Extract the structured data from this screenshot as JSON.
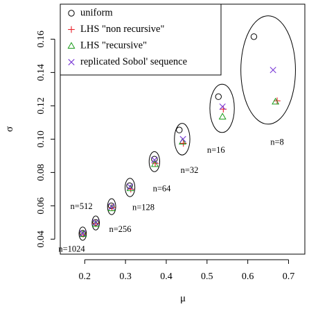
{
  "chart_data": {
    "type": "scatter",
    "xlabel": "μ",
    "ylabel": "σ",
    "xlim": [
      0.14,
      0.74
    ],
    "ylim": [
      0.031,
      0.181
    ],
    "x_ticks": [
      0.2,
      0.3,
      0.4,
      0.5,
      0.6,
      0.7
    ],
    "x_tick_labels": [
      "0.2",
      "0.3",
      "0.4",
      "0.5",
      "0.6",
      "0.7"
    ],
    "y_ticks": [
      0.04,
      0.06,
      0.08,
      0.1,
      0.12,
      0.14,
      0.16
    ],
    "y_tick_labels": [
      "0.04",
      "0.06",
      "0.08",
      "0.10",
      "0.12",
      "0.14",
      "0.16"
    ],
    "grid": false,
    "legend_position": "top-left",
    "series": [
      {
        "name": "uniform",
        "marker": "circle",
        "color": "#000000",
        "x": [
          0.615,
          0.528,
          0.432,
          0.371,
          0.31,
          0.265,
          0.227,
          0.195
        ],
        "y": [
          0.1615,
          0.1255,
          0.1055,
          0.088,
          0.072,
          0.06,
          0.05,
          0.0435
        ]
      },
      {
        "name": "LHS \"non recursive\"",
        "marker": "plus",
        "color": "#e8202a",
        "x": [
          0.672,
          0.54,
          0.442,
          0.373,
          0.313,
          0.267,
          0.227,
          0.196
        ],
        "y": [
          0.123,
          0.118,
          0.0975,
          0.0855,
          0.07,
          0.059,
          0.0495,
          0.043
        ]
      },
      {
        "name": "LHS \"recursive\"",
        "marker": "triangle",
        "color": "#1a9a1a",
        "x": [
          0.668,
          0.538,
          0.44,
          0.372,
          0.312,
          0.266,
          0.227,
          0.196
        ],
        "y": [
          0.1225,
          0.1135,
          0.0985,
          0.085,
          0.0705,
          0.0585,
          0.049,
          0.043
        ]
      },
      {
        "name": "replicated Sobol' sequence",
        "marker": "x",
        "color": "#7a3ad6",
        "x": [
          0.662,
          0.538,
          0.441,
          0.371,
          0.311,
          0.266,
          0.227,
          0.195
        ],
        "y": [
          0.1415,
          0.1195,
          0.1,
          0.0875,
          0.0715,
          0.0595,
          0.05,
          0.0435
        ]
      }
    ],
    "groups": [
      {
        "label": "n=8",
        "cx": 0.65,
        "cy": 0.1415,
        "rx": 0.067,
        "ry": 0.0325,
        "label_x": 0.672,
        "label_y": 0.0978
      },
      {
        "label": "n=16",
        "cx": 0.537,
        "cy": 0.1185,
        "rx": 0.03,
        "ry": 0.0145,
        "label_x": 0.522,
        "label_y": 0.093
      },
      {
        "label": "n=32",
        "cx": 0.439,
        "cy": 0.1,
        "rx": 0.019,
        "ry": 0.0095,
        "label_x": 0.457,
        "label_y": 0.081
      },
      {
        "label": "n=64",
        "cx": 0.371,
        "cy": 0.0865,
        "rx": 0.013,
        "ry": 0.006,
        "label_x": 0.389,
        "label_y": 0.07
      },
      {
        "label": "n=128",
        "cx": 0.311,
        "cy": 0.071,
        "rx": 0.012,
        "ry": 0.0055,
        "label_x": 0.344,
        "label_y": 0.0587
      },
      {
        "label": "n=256",
        "cx": 0.266,
        "cy": 0.0595,
        "rx": 0.01,
        "ry": 0.0048,
        "label_x": 0.287,
        "label_y": 0.0455
      },
      {
        "label": "n=512",
        "cx": 0.227,
        "cy": 0.0497,
        "rx": 0.009,
        "ry": 0.0042,
        "label_x": 0.192,
        "label_y": 0.0592
      },
      {
        "label": "n=1024",
        "cx": 0.195,
        "cy": 0.0433,
        "rx": 0.009,
        "ry": 0.004,
        "label_x": 0.168,
        "label_y": 0.0337
      }
    ]
  }
}
